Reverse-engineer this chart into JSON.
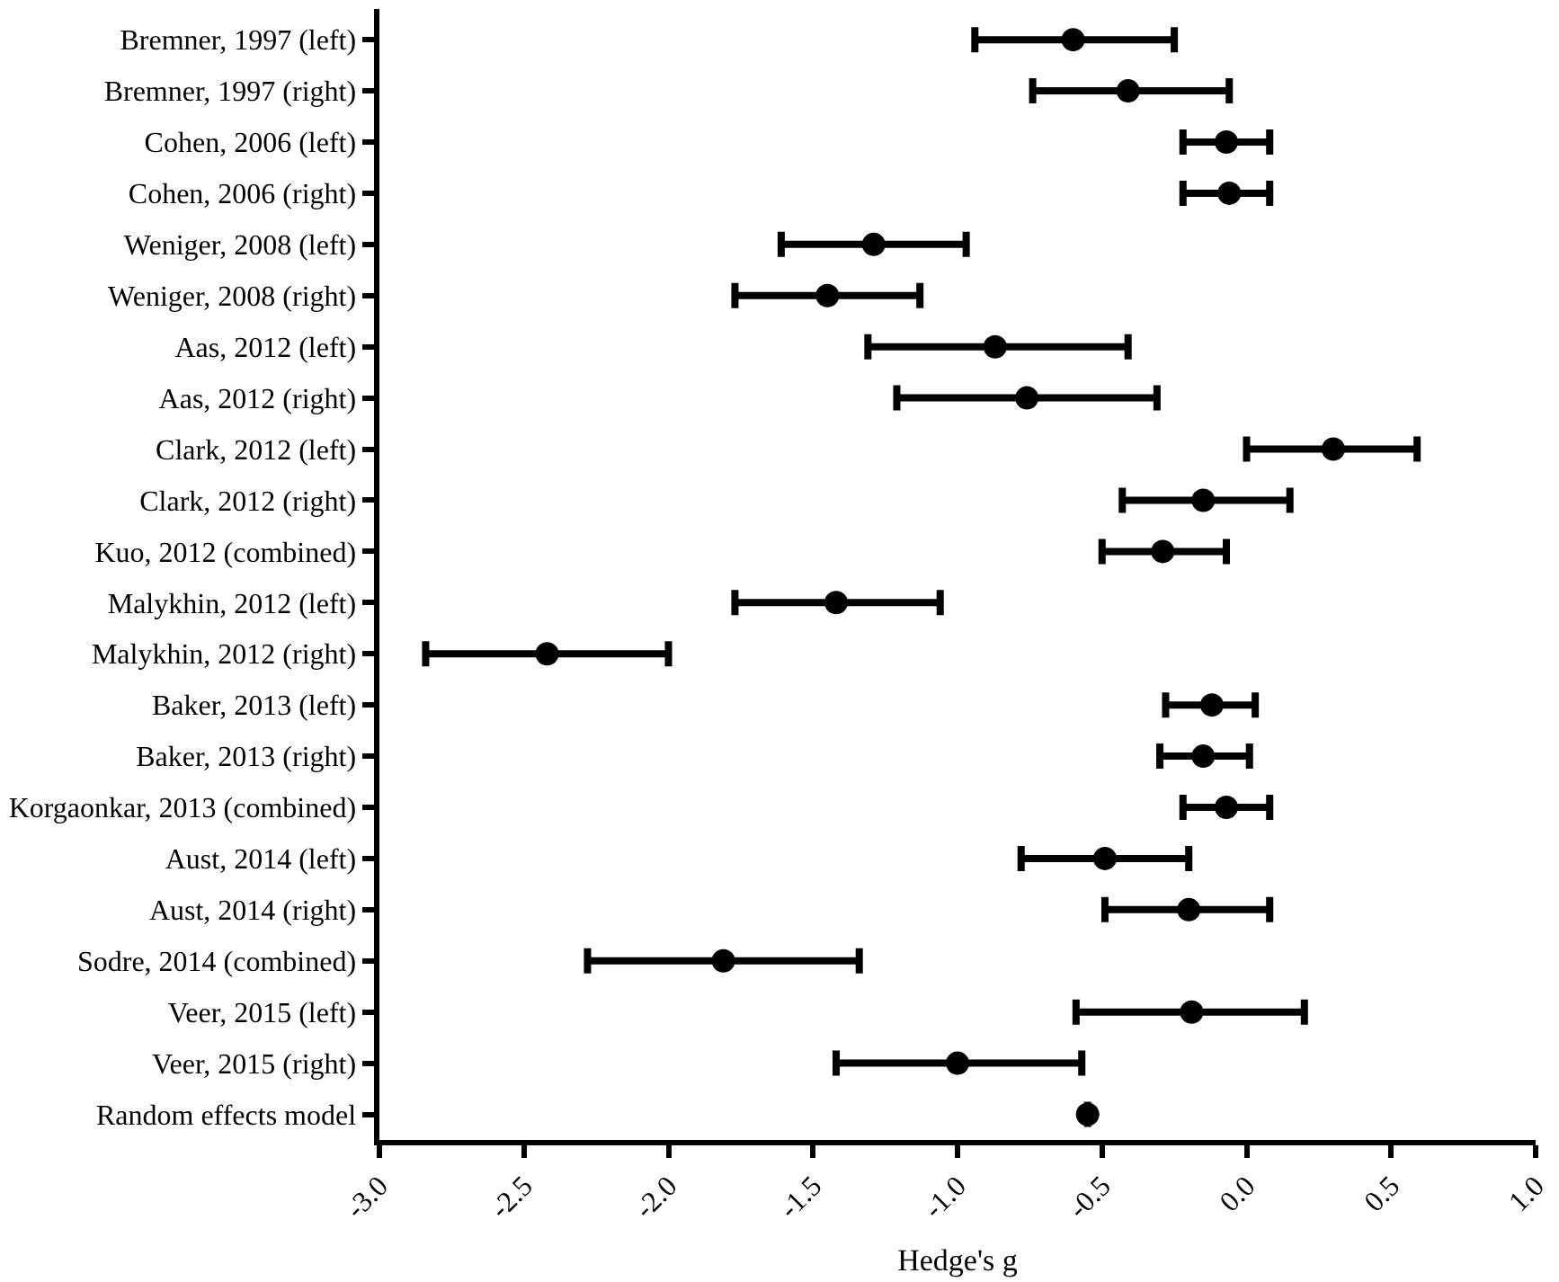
{
  "chart_data": {
    "type": "scatter",
    "xlabel": "Hedge's g",
    "categories": [
      "Bremner, 1997 (left)",
      "Bremner, 1997 (right)",
      "Cohen, 2006 (left)",
      "Cohen, 2006 (right)",
      "Weniger, 2008 (left)",
      "Weniger, 2008 (right)",
      "Aas, 2012 (left)",
      "Aas, 2012 (right)",
      "Clark, 2012 (left)",
      "Clark, 2012 (right)",
      "Kuo, 2012 (combined)",
      "Malykhin, 2012 (left)",
      "Malykhin, 2012 (right)",
      "Baker, 2013 (left)",
      "Baker, 2013 (right)",
      "Korgaonkar, 2013 (combined)",
      "Aust, 2014 (left)",
      "Aust, 2014 (right)",
      "Sodre, 2014 (combined)",
      "Veer, 2015 (left)",
      "Veer, 2015 (right)",
      "Random effects model"
    ],
    "orientation": "horizontal",
    "values": [
      -0.6,
      -0.41,
      -0.07,
      -0.06,
      -1.29,
      -1.45,
      -0.87,
      -0.76,
      0.3,
      -0.15,
      -0.29,
      -1.42,
      -2.42,
      -0.12,
      -0.15,
      -0.07,
      -0.49,
      -0.2,
      -1.81,
      -0.19,
      -1.0,
      -0.55
    ],
    "errors": [
      [
        -0.94,
        -0.25
      ],
      [
        -0.74,
        -0.06
      ],
      [
        -0.22,
        0.08
      ],
      [
        -0.22,
        0.08
      ],
      [
        -1.61,
        -0.97
      ],
      [
        -1.77,
        -1.13
      ],
      [
        -1.31,
        -0.41
      ],
      [
        -1.21,
        -0.31
      ],
      [
        0.0,
        0.59
      ],
      [
        -0.43,
        0.15
      ],
      [
        -0.5,
        -0.07
      ],
      [
        -1.77,
        -1.06
      ],
      [
        -2.84,
        -2.0
      ],
      [
        -0.28,
        0.03
      ],
      [
        -0.3,
        0.01
      ],
      [
        -0.22,
        0.08
      ],
      [
        -0.78,
        -0.2
      ],
      [
        -0.49,
        0.08
      ],
      [
        -2.28,
        -1.34
      ],
      [
        -0.59,
        0.2
      ],
      [
        -1.42,
        -0.57
      ],
      null
    ],
    "color": "#000000",
    "marker": "circle",
    "legend": false,
    "grid": false,
    "xlim": [
      -3,
      1
    ],
    "xticks": [
      {
        "value": -3,
        "label": "-3.0"
      },
      {
        "value": -2.5,
        "label": "-2.5"
      },
      {
        "value": -2,
        "label": "-2.0"
      },
      {
        "value": -1.5,
        "label": "-1.5"
      },
      {
        "value": -1,
        "label": "-1.0"
      },
      {
        "value": -0.5,
        "label": "-0.5"
      },
      {
        "value": 0,
        "label": "0.0"
      },
      {
        "value": 0.5,
        "label": "0.5"
      },
      {
        "value": 1,
        "label": "1.0"
      }
    ]
  }
}
